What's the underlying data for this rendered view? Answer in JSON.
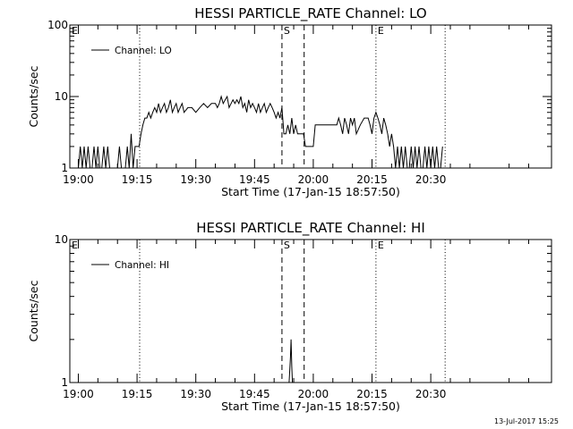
{
  "footer": {
    "timestamp": "13-Jul-2017 15:25"
  },
  "chart_data": [
    {
      "type": "line",
      "title": "HESSI PARTICLE_RATE Channel: LO",
      "xlabel": "Start Time (17-Jan-15 18:57:50)",
      "ylabel": "Counts/sec",
      "yscale": "log",
      "ylim": [
        1,
        100
      ],
      "y_ticks": [
        {
          "value": 1,
          "label": "1"
        },
        {
          "value": 10,
          "label": "10"
        },
        {
          "value": 100,
          "label": "100"
        }
      ],
      "xlim": [
        "18:57:50",
        "21:00:50"
      ],
      "x_ticks": [
        "19:00",
        "19:15",
        "19:30",
        "19:45",
        "20:00",
        "20:15",
        "20:30"
      ],
      "legend": {
        "entries": [
          "Channel: LO"
        ],
        "position": "top-left"
      },
      "markers": [
        {
          "time": "19:15:40",
          "label": "",
          "style": "dotted"
        },
        {
          "time": "19:52:00",
          "label": "S",
          "style": "dashed"
        },
        {
          "time": "19:57:40",
          "label": "",
          "style": "dashed"
        },
        {
          "time": "20:16:00",
          "label": "E",
          "style": "dotted"
        },
        {
          "time": "20:33:40",
          "label": "",
          "style": "dotted"
        }
      ],
      "corner_label": "E",
      "series": [
        {
          "name": "Channel: LO",
          "x": [
            "19:00:00",
            "19:00:30",
            "19:01:00",
            "19:01:30",
            "19:02:00",
            "19:02:30",
            "19:03:00",
            "19:03:30",
            "19:04:00",
            "19:04:30",
            "19:05:00",
            "19:05:30",
            "19:06:00",
            "19:06:30",
            "19:07:00",
            "19:07:30",
            "19:08:00",
            "19:10:00",
            "19:10:30",
            "19:11:00",
            "19:12:00",
            "19:12:30",
            "19:13:00",
            "19:13:30",
            "19:14:00",
            "19:14:30",
            "19:15:00",
            "19:15:30",
            "19:16:00",
            "19:16:30",
            "19:17:00",
            "19:17:30",
            "19:18:00",
            "19:18:30",
            "19:19:00",
            "19:19:30",
            "19:20:00",
            "19:20:30",
            "19:21:00",
            "19:21:30",
            "19:22:00",
            "19:22:30",
            "19:23:00",
            "19:23:30",
            "19:24:00",
            "19:24:30",
            "19:25:00",
            "19:25:30",
            "19:26:00",
            "19:26:30",
            "19:27:00",
            "19:28:00",
            "19:29:00",
            "19:30:00",
            "19:31:00",
            "19:32:00",
            "19:33:00",
            "19:34:00",
            "19:35:00",
            "19:35:30",
            "19:36:00",
            "19:36:30",
            "19:37:00",
            "19:37:30",
            "19:38:00",
            "19:38:30",
            "19:39:00",
            "19:39:30",
            "19:40:00",
            "19:40:30",
            "19:41:00",
            "19:41:30",
            "19:42:00",
            "19:42:30",
            "19:43:00",
            "19:43:30",
            "19:44:00",
            "19:44:30",
            "19:45:00",
            "19:45:30",
            "19:46:00",
            "19:46:30",
            "19:47:00",
            "19:47:30",
            "19:48:00",
            "19:48:30",
            "19:49:00",
            "19:49:30",
            "19:50:00",
            "19:50:30",
            "19:51:00",
            "19:51:30",
            "19:52:00",
            "19:52:30",
            "19:53:00",
            "19:53:30",
            "19:54:00",
            "19:54:30",
            "19:55:00",
            "19:55:30",
            "19:56:00",
            "19:56:30",
            "19:57:00",
            "19:57:30",
            "19:58:00",
            "19:59:00",
            "20:00:00",
            "20:00:30",
            "20:01:00",
            "20:02:00",
            "20:03:00",
            "20:04:00",
            "20:05:00",
            "20:06:00",
            "20:06:30",
            "20:07:00",
            "20:07:30",
            "20:08:00",
            "20:08:30",
            "20:09:00",
            "20:09:30",
            "20:10:00",
            "20:10:30",
            "20:11:00",
            "20:12:00",
            "20:13:00",
            "20:13:30",
            "20:14:00",
            "20:14:30",
            "20:15:00",
            "20:15:30",
            "20:16:00",
            "20:16:30",
            "20:17:00",
            "20:17:30",
            "20:18:00",
            "20:18:30",
            "20:19:00",
            "20:19:30",
            "20:20:00",
            "20:20:30",
            "20:21:00",
            "20:21:30",
            "20:22:00",
            "20:22:30",
            "20:23:00",
            "20:23:30",
            "20:24:00",
            "20:24:30",
            "20:25:00",
            "20:25:30",
            "20:26:00",
            "20:26:30",
            "20:27:00",
            "20:27:30",
            "20:28:00",
            "20:28:30",
            "20:29:00",
            "20:29:30",
            "20:30:00",
            "20:30:30",
            "20:31:00",
            "20:31:30",
            "20:32:00",
            "20:32:30",
            "20:33:00"
          ],
          "y": [
            1,
            2,
            1,
            2,
            1,
            2,
            1,
            1,
            2,
            1,
            2,
            1,
            1,
            2,
            1,
            2,
            1,
            1,
            2,
            1,
            1,
            2,
            1,
            3,
            1,
            2,
            2,
            2,
            3,
            4,
            5,
            5,
            6,
            5,
            6,
            7,
            6,
            8,
            6,
            7,
            8,
            6,
            7,
            9,
            6,
            7,
            8,
            6,
            7,
            8,
            6,
            7,
            7,
            6,
            7,
            8,
            7,
            8,
            8,
            7,
            8,
            10,
            8,
            9,
            10,
            7,
            8,
            9,
            8,
            9,
            8,
            10,
            7,
            8,
            6,
            9,
            7,
            8,
            7,
            6,
            8,
            6,
            7,
            8,
            6,
            7,
            8,
            7,
            6,
            5,
            6,
            5,
            7,
            3,
            3,
            4,
            3,
            5,
            3,
            4,
            3,
            3,
            3,
            3,
            2,
            2,
            2,
            4,
            4,
            4,
            4,
            4,
            4,
            4,
            5,
            4,
            3,
            5,
            4,
            3,
            5,
            4,
            5,
            3,
            4,
            5,
            5,
            5,
            4,
            3,
            5,
            6,
            5,
            4,
            3,
            5,
            4,
            3,
            2,
            3,
            2,
            1,
            2,
            1,
            2,
            1,
            2,
            1,
            1,
            2,
            1,
            2,
            1,
            2,
            1,
            1,
            2,
            1,
            2,
            1,
            2,
            1,
            2,
            1,
            1,
            2
          ]
        }
      ]
    },
    {
      "type": "line",
      "title": "HESSI PARTICLE_RATE Channel: HI",
      "xlabel": "Start Time (17-Jan-15 18:57:50)",
      "ylabel": "Counts/sec",
      "yscale": "log",
      "ylim": [
        1,
        10
      ],
      "y_ticks": [
        {
          "value": 1,
          "label": "1"
        },
        {
          "value": 10,
          "label": "10"
        }
      ],
      "xlim": [
        "18:57:50",
        "21:00:50"
      ],
      "x_ticks": [
        "19:00",
        "19:15",
        "19:30",
        "19:45",
        "20:00",
        "20:15",
        "20:30"
      ],
      "legend": {
        "entries": [
          "Channel: HI"
        ],
        "position": "top-left"
      },
      "markers": [
        {
          "time": "19:15:40",
          "label": "",
          "style": "dotted"
        },
        {
          "time": "19:52:00",
          "label": "S",
          "style": "dashed"
        },
        {
          "time": "19:57:40",
          "label": "",
          "style": "dashed"
        },
        {
          "time": "20:16:00",
          "label": "E",
          "style": "dotted"
        },
        {
          "time": "20:33:40",
          "label": "",
          "style": "dotted"
        }
      ],
      "corner_label": "E",
      "series": [
        {
          "name": "Channel: HI",
          "x": [
            "19:53:50",
            "19:54:10",
            "19:54:20",
            "19:54:30",
            "19:54:40"
          ],
          "y": [
            1,
            1.5,
            2,
            1.3,
            1
          ]
        }
      ]
    }
  ]
}
